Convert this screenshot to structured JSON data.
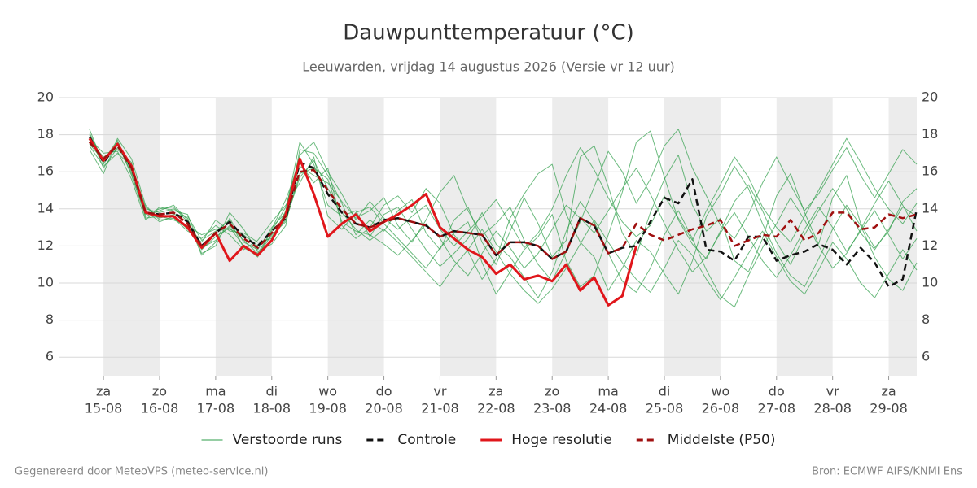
{
  "chart_data": {
    "type": "line",
    "title": "Dauwpunttemperatuur (°C)",
    "subtitle": "Leeuwarden, vrijdag 14 augustus 2026 (Versie vr 12 uur)",
    "footer_left": "Gegenereerd door MeteoVPS (meteo-service.nl)",
    "footer_right": "Bron: ECMWF AIFS/KNMI Ens",
    "grid": true,
    "legend": "bottom",
    "xlim": [
      -0.8,
      14.5
    ],
    "ylim": [
      5,
      20
    ],
    "yticks": [
      6,
      8,
      10,
      12,
      14,
      16,
      18,
      20
    ],
    "xticks": [
      {
        "value": 0,
        "label": "za",
        "date": "15-08"
      },
      {
        "value": 1,
        "label": "zo",
        "date": "16-08"
      },
      {
        "value": 2,
        "label": "ma",
        "date": "17-08"
      },
      {
        "value": 3,
        "label": "di",
        "date": "18-08"
      },
      {
        "value": 4,
        "label": "wo",
        "date": "19-08"
      },
      {
        "value": 5,
        "label": "do",
        "date": "20-08"
      },
      {
        "value": 6,
        "label": "vr",
        "date": "21-08"
      },
      {
        "value": 7,
        "label": "za",
        "date": "22-08"
      },
      {
        "value": 8,
        "label": "zo",
        "date": "23-08"
      },
      {
        "value": 9,
        "label": "ma",
        "date": "24-08"
      },
      {
        "value": 10,
        "label": "di",
        "date": "25-08"
      },
      {
        "value": 11,
        "label": "wo",
        "date": "26-08"
      },
      {
        "value": 12,
        "label": "do",
        "date": "27-08"
      },
      {
        "value": 13,
        "label": "vr",
        "date": "28-08"
      },
      {
        "value": 14,
        "label": "za",
        "date": "29-08"
      }
    ],
    "x": [
      -0.25,
      0,
      0.25,
      0.5,
      0.75,
      1,
      1.25,
      1.5,
      1.75,
      2,
      2.25,
      2.5,
      2.75,
      3,
      3.25,
      3.5,
      3.75,
      4,
      4.25,
      4.5,
      4.75,
      5,
      5.25,
      5.5,
      5.75,
      6,
      6.25,
      6.5,
      6.75,
      7,
      7.25,
      7.5,
      7.75,
      8,
      8.25,
      8.5,
      8.75,
      9,
      9.25,
      9.5,
      9.75,
      10,
      10.25,
      10.5,
      10.75,
      11,
      11.25,
      11.5,
      11.75,
      12,
      12.25,
      12.5,
      12.75,
      13,
      13.25,
      13.5,
      13.75,
      14,
      14.25,
      14.5
    ],
    "series": [
      {
        "name": "Verstoorde runs",
        "color": "#2e9e48",
        "dash": false,
        "values": [
          [
            18.3,
            16.4,
            17.6,
            15.8,
            13.6,
            13.9,
            14.2,
            13.4,
            11.5,
            12.2,
            13.8,
            12.9,
            11.7,
            12.1,
            13.1,
            17.2,
            17.0,
            15.8,
            14.3,
            12.6,
            13.4,
            12.8,
            13.9,
            14.5,
            12.7,
            11.8,
            13.4,
            14.1,
            12.2,
            11.0,
            12.8,
            14.6,
            13.2,
            11.4,
            12.3,
            16.8,
            17.4,
            15.2,
            12.7,
            11.5,
            13.8,
            15.6,
            16.9,
            14.2,
            12.8,
            13.5,
            11.2,
            10.6,
            12.4,
            14.7,
            15.9,
            13.8,
            12.1,
            14.6,
            15.8,
            13.2,
            11.9,
            12.8,
            14.4,
            15.1
          ],
          [
            17.2,
            15.9,
            17.8,
            16.7,
            14.2,
            13.4,
            13.5,
            12.8,
            12.4,
            13.1,
            12.6,
            11.8,
            12.3,
            13.3,
            14.2,
            15.4,
            16.8,
            13.6,
            12.9,
            13.8,
            14.1,
            13.2,
            12.4,
            11.6,
            10.8,
            11.9,
            12.7,
            13.3,
            11.1,
            9.4,
            10.6,
            11.8,
            12.5,
            13.7,
            11.2,
            9.8,
            10.4,
            12.6,
            14.9,
            17.6,
            18.2,
            15.7,
            13.4,
            12.1,
            11.3,
            12.8,
            14.4,
            15.3,
            13.9,
            12.2,
            11.0,
            12.6,
            13.9,
            15.1,
            14.0,
            12.7,
            11.8,
            12.9,
            14.1,
            13.6
          ],
          [
            17.8,
            17.0,
            17.1,
            15.6,
            13.4,
            14.1,
            13.9,
            13.7,
            11.8,
            12.5,
            13.0,
            12.0,
            11.4,
            12.9,
            14.5,
            16.5,
            15.4,
            16.2,
            13.1,
            12.4,
            13.0,
            14.2,
            14.7,
            13.8,
            15.1,
            14.3,
            12.6,
            11.7,
            10.2,
            11.3,
            13.5,
            14.8,
            15.9,
            16.4,
            13.7,
            12.2,
            11.4,
            9.6,
            10.8,
            12.3,
            11.7,
            10.5,
            9.4,
            11.2,
            13.6,
            14.8,
            16.3,
            15.1,
            13.2,
            11.6,
            10.4,
            9.8,
            11.3,
            12.9,
            14.2,
            13.1,
            11.4,
            10.2,
            9.6,
            11.1
          ],
          [
            18.0,
            16.2,
            17.3,
            16.4,
            13.9,
            13.3,
            13.6,
            12.9,
            12.2,
            13.4,
            12.8,
            12.7,
            12.2,
            12.4,
            13.9,
            17.6,
            16.4,
            14.2,
            13.6,
            13.9,
            12.5,
            13.7,
            14.1,
            12.9,
            11.8,
            10.9,
            11.6,
            12.4,
            13.8,
            12.1,
            11.4,
            10.3,
            9.2,
            10.6,
            12.8,
            14.4,
            13.3,
            11.6,
            10.1,
            9.5,
            10.8,
            12.6,
            13.9,
            12.4,
            10.7,
            9.3,
            8.7,
            10.4,
            11.9,
            13.2,
            14.6,
            13.4,
            12.0,
            10.8,
            11.6,
            12.9,
            14.3,
            15.5,
            14.2,
            12.8
          ],
          [
            17.5,
            16.6,
            17.7,
            16.0,
            14.0,
            13.8,
            14.0,
            13.5,
            11.6,
            12.0,
            13.5,
            12.2,
            11.8,
            13.0,
            13.8,
            16.3,
            15.8,
            15.4,
            14.4,
            13.5,
            13.9,
            14.6,
            13.1,
            12.2,
            13.4,
            14.9,
            15.8,
            13.9,
            12.6,
            13.2,
            14.1,
            12.3,
            11.0,
            10.1,
            11.7,
            13.3,
            15.2,
            17.1,
            16.0,
            14.3,
            15.6,
            17.4,
            18.3,
            16.2,
            14.7,
            13.1,
            12.4,
            13.7,
            15.4,
            16.8,
            15.3,
            13.9,
            14.8,
            16.1,
            17.3,
            15.8,
            14.6,
            15.9,
            17.2,
            16.4
          ],
          [
            17.7,
            16.8,
            17.2,
            16.5,
            13.5,
            13.6,
            13.4,
            13.1,
            12.6,
            12.9,
            12.9,
            12.6,
            12.0,
            12.5,
            13.4,
            15.7,
            16.6,
            15.1,
            13.8,
            12.9,
            12.3,
            12.9,
            12.2,
            11.4,
            10.6,
            9.8,
            10.9,
            11.8,
            12.9,
            11.7,
            10.5,
            9.6,
            8.9,
            9.7,
            10.8,
            12.1,
            13.4,
            12.2,
            11.1,
            10.2,
            9.5,
            10.8,
            12.3,
            11.5,
            10.2,
            9.1,
            10.3,
            11.6,
            12.8,
            11.4,
            10.1,
            9.4,
            10.7,
            12.2,
            11.3,
            10.0,
            9.2,
            10.5,
            11.8,
            10.7
          ],
          [
            18.1,
            16.5,
            17.5,
            15.9,
            13.7,
            14.0,
            14.1,
            13.3,
            11.9,
            12.3,
            13.1,
            12.3,
            11.6,
            12.8,
            14.1,
            16.9,
            17.6,
            16.0,
            14.8,
            13.4,
            14.4,
            13.5,
            12.9,
            13.6,
            14.2,
            12.9,
            12.0,
            12.8,
            13.6,
            14.5,
            13.2,
            11.9,
            12.7,
            14.0,
            15.8,
            17.3,
            16.1,
            14.6,
            13.3,
            12.5,
            13.1,
            14.7,
            13.5,
            12.3,
            13.9,
            15.3,
            16.8,
            15.7,
            14.1,
            13.0,
            12.2,
            13.6,
            15.0,
            16.4,
            17.8,
            16.5,
            15.1,
            14.0,
            13.2,
            14.3
          ],
          [
            17.4,
            16.3,
            17.0,
            16.3,
            14.1,
            13.5,
            13.7,
            13.6,
            12.3,
            12.8,
            13.4,
            11.9,
            11.5,
            12.6,
            13.3,
            15.9,
            16.2,
            15.6,
            13.3,
            12.8,
            12.6,
            12.1,
            11.5,
            12.3,
            13.2,
            12.4,
            11.2,
            10.4,
            11.6,
            12.8,
            11.9,
            10.8,
            11.6,
            12.9,
            14.2,
            13.5,
            12.7,
            13.9,
            15.1,
            16.2,
            14.8,
            13.2,
            11.8,
            10.6,
            11.4,
            12.7,
            13.8,
            12.5,
            11.2,
            10.3,
            11.5,
            12.9,
            14.1,
            13.0,
            11.7,
            12.8,
            13.9,
            12.6,
            11.3,
            12.4
          ]
        ]
      },
      {
        "name": "Controle",
        "color": "#111111",
        "dash": true,
        "values": [
          17.9,
          16.5,
          17.5,
          16.2,
          13.8,
          13.7,
          13.8,
          13.3,
          12.0,
          12.7,
          13.3,
          12.5,
          12.0,
          12.8,
          13.5,
          16.5,
          16.2,
          14.8,
          13.8,
          13.2,
          13.0,
          13.4,
          13.5,
          13.3,
          13.1,
          12.5,
          12.8,
          12.7,
          12.6,
          11.5,
          12.2,
          12.2,
          12.0,
          11.3,
          11.7,
          13.5,
          13.1,
          11.6,
          11.9,
          12.0,
          13.3,
          14.6,
          14.3,
          15.6,
          11.8,
          11.7,
          11.2,
          12.5,
          12.5,
          11.2,
          11.5,
          11.7,
          12.1,
          11.8,
          11.0,
          11.9,
          11.1,
          9.8,
          10.2,
          14.0
        ]
      },
      {
        "name": "Hoge resolutie",
        "color": "#e0161b",
        "dash": false,
        "values": [
          17.8,
          16.6,
          17.5,
          16.3,
          13.8,
          13.6,
          13.6,
          13.0,
          11.9,
          12.7,
          11.2,
          12.0,
          11.5,
          12.3,
          13.7,
          16.7,
          14.8,
          12.5,
          13.2,
          13.7,
          12.8,
          13.3,
          13.7,
          14.2,
          14.8,
          13.0,
          12.4,
          11.8,
          11.4,
          10.5,
          11.0,
          10.2,
          10.4,
          10.1,
          11.0,
          9.6,
          10.3,
          8.8,
          9.3,
          12.0,
          null,
          null,
          null,
          null,
          null,
          null,
          null,
          null,
          null,
          null,
          null,
          null,
          null,
          null,
          null,
          null,
          null,
          null,
          null,
          null
        ]
      },
      {
        "name": "Middelste (P50)",
        "color": "#a01010",
        "dash": true,
        "values": [
          17.6,
          16.7,
          17.4,
          16.2,
          13.8,
          13.7,
          13.8,
          13.2,
          12.0,
          12.7,
          13.2,
          12.4,
          11.9,
          12.7,
          13.6,
          16.0,
          16.1,
          15.0,
          14.0,
          13.2,
          13.0,
          13.3,
          13.5,
          13.3,
          13.1,
          12.5,
          12.8,
          12.7,
          12.6,
          11.5,
          12.2,
          12.2,
          12.0,
          11.3,
          11.7,
          13.5,
          13.1,
          11.6,
          11.9,
          13.2,
          12.6,
          12.3,
          12.6,
          12.9,
          13.1,
          13.4,
          12.0,
          12.3,
          12.6,
          12.5,
          13.4,
          12.3,
          12.7,
          13.8,
          13.8,
          12.9,
          13.0,
          13.7,
          13.5,
          13.7
        ]
      }
    ]
  }
}
